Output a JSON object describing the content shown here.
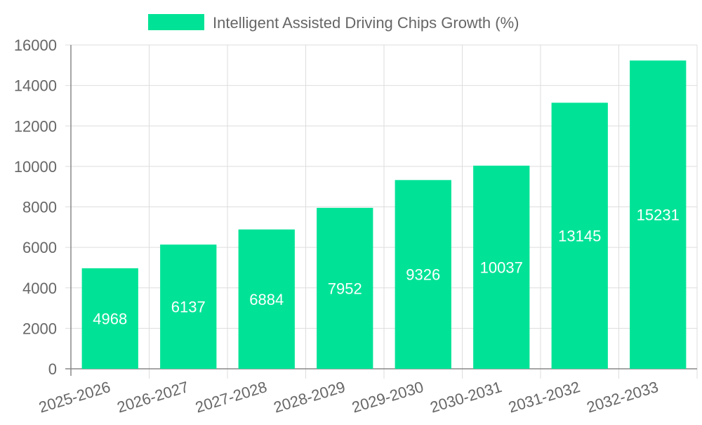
{
  "chart_data": {
    "type": "bar",
    "categories": [
      "2025-2026",
      "2026-2027",
      "2027-2028",
      "2028-2029",
      "2029-2030",
      "2030-2031",
      "2031-2032",
      "2032-2033"
    ],
    "series": [
      {
        "name": "Intelligent Assisted Driving Chips Growth (%)",
        "values": [
          4968,
          6137,
          6884,
          7952,
          9326,
          10037,
          13145,
          15231
        ],
        "color": "#00e396"
      }
    ],
    "ylim": [
      0,
      16000
    ],
    "yticks": [
      "0",
      "2000",
      "4000",
      "6000",
      "8000",
      "10000",
      "12000",
      "14000",
      "16000"
    ],
    "grid": true,
    "legend": "top-center",
    "data_labels": true,
    "colors": {
      "bar": "#00e396",
      "grid": "#dddddd",
      "axis": "#888888",
      "tick_text": "#666666",
      "label_text": "#ffffff"
    }
  }
}
